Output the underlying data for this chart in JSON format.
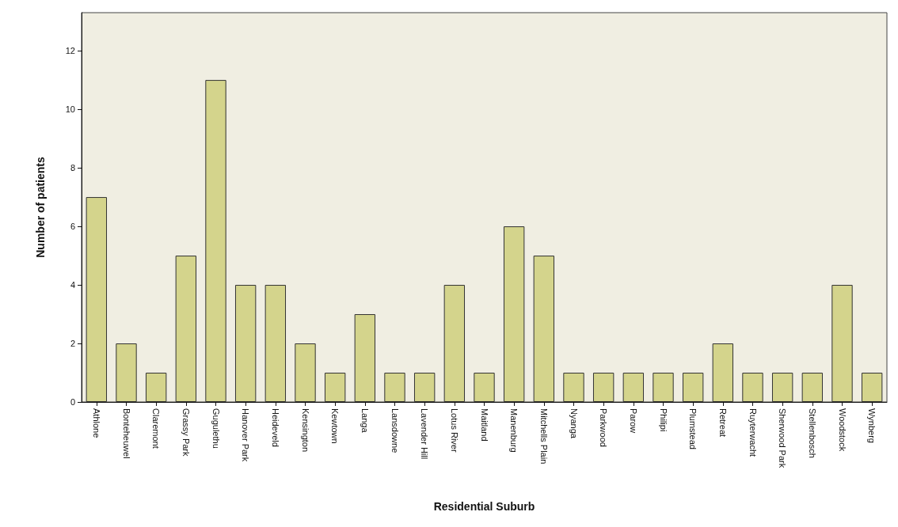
{
  "chart_data": {
    "type": "bar",
    "xlabel": "Residential Suburb",
    "ylabel": "Number of patients",
    "categories": [
      "Athlone",
      "Bonteheuwel",
      "Claremont",
      "Grassy Park",
      "Gugulethu",
      "Hanover Park",
      "Heideveld",
      "Kensington",
      "Kewtown",
      "Langa",
      "Lansdowne",
      "Lavender Hill",
      "Lotus River",
      "Maitland",
      "Manenburg",
      "Mitchells Plain",
      "Nyanga",
      "Parkwood",
      "Parow",
      "Philipi",
      "Plumstead",
      "Retreat",
      "Ruyterwacht",
      "Sherwood Park",
      "Stellenbosch",
      "Woodstock",
      "Wynberg"
    ],
    "values": [
      7,
      2,
      1,
      5,
      11,
      4,
      4,
      2,
      1,
      3,
      1,
      1,
      4,
      1,
      6,
      5,
      1,
      1,
      1,
      1,
      1,
      2,
      1,
      1,
      1,
      4,
      1
    ],
    "color": "#d4d48c",
    "ylim": [
      0,
      13.3
    ],
    "yticks": [
      0,
      2,
      4,
      6,
      8,
      10,
      12
    ],
    "grid": false
  }
}
